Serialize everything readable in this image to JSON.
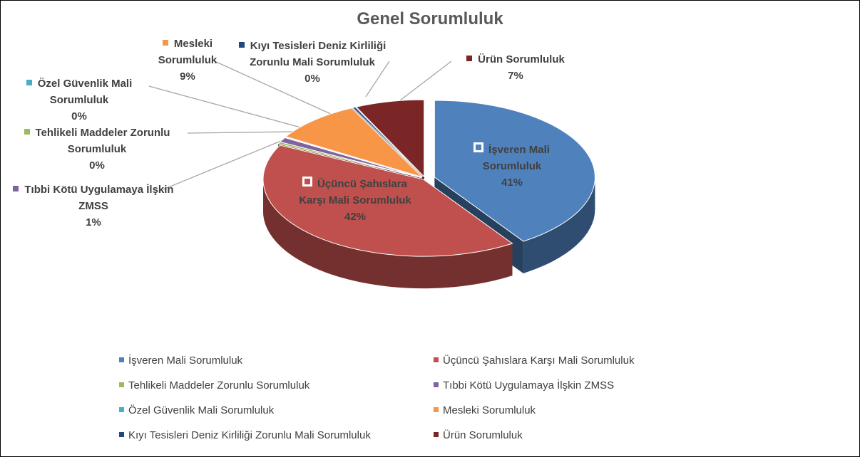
{
  "chart_data": {
    "type": "pie3d",
    "title": "Genel Sorumluluk",
    "categories": [
      "İşveren Mali Sorumluluk",
      "Üçüncü Şahıslara Karşı Mali Sorumluluk",
      "Tehlikeli Maddeler Zorunlu Sorumluluk",
      "Tıbbi Kötü Uygulamaya İlşkin ZMSS",
      "Özel Güvenlik Mali Sorumluluk",
      "Mesleki Sorumluluk",
      "Kıyı Tesisleri Deniz Kirliliği Zorunlu Mali Sorumluluk",
      "Ürün Sorumluluk"
    ],
    "values": [
      41,
      42,
      0.4,
      1,
      0.1,
      9,
      0.3,
      7
    ],
    "value_labels": [
      "41%",
      "42%",
      "0%",
      "1%",
      "0%",
      "9%",
      "0%",
      "7%"
    ],
    "colors": [
      "#4f81bd",
      "#c0504d",
      "#9bbb59",
      "#8064a2",
      "#4bacc6",
      "#f79646",
      "#1f497d",
      "#7b2626"
    ],
    "legend": "bottom"
  }
}
